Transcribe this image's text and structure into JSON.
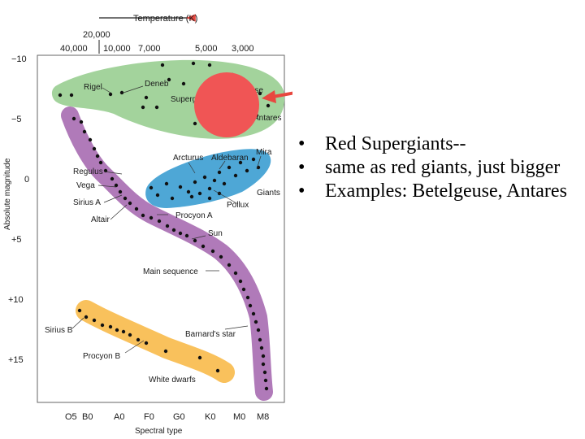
{
  "diagram": {
    "top_axis_title": "Temperature (K)",
    "temp_ticks": [
      "40,000",
      "20,000",
      "10,000",
      "7,000",
      "5,000",
      "3,000"
    ],
    "magnitude_ticks": [
      "−10",
      "−5",
      "0",
      "+5",
      "+10",
      "+15"
    ],
    "y_axis_title": "Absolute magnitude",
    "spectral_ticks": [
      "O5",
      "B0",
      "A0",
      "F0",
      "G0",
      "K0",
      "M0",
      "M8"
    ],
    "x_axis_title": "Spectral type",
    "region_labels": {
      "supergiants": "Supergiants",
      "giants": "Giants",
      "main_sequence": "Main sequence",
      "white_dwarfs": "White dwarfs"
    },
    "star_labels": {
      "rigel": "Rigel",
      "deneb": "Deneb",
      "betelgeuse_fragment": "use",
      "antares": "Antares",
      "mira": "Mira",
      "aldebaran": "Aldebaran",
      "arcturus": "Arcturus",
      "regulus": "Regulus",
      "vega": "Vega",
      "sirius_a": "Sirius A",
      "altair": "Altair",
      "pollux": "Pollux",
      "procyon_a": "Procyon A",
      "sun": "Sun",
      "sirius_b": "Sirius B",
      "barnards_star": "Barnard's star",
      "procyon_b": "Procyon B"
    },
    "colors": {
      "supergiants": "#a3d39c",
      "giants": "#4ea7d6",
      "main_sequence": "#b07ab9",
      "white_dwarfs": "#f9c15c",
      "highlight_circle": "#f05555",
      "arrow": "#e8473f"
    }
  },
  "bullets": [
    "Red Supergiants--",
    "same as red giants, just bigger",
    "Examples: Betelgeuse, Antares"
  ],
  "bullet_symbol": "•"
}
